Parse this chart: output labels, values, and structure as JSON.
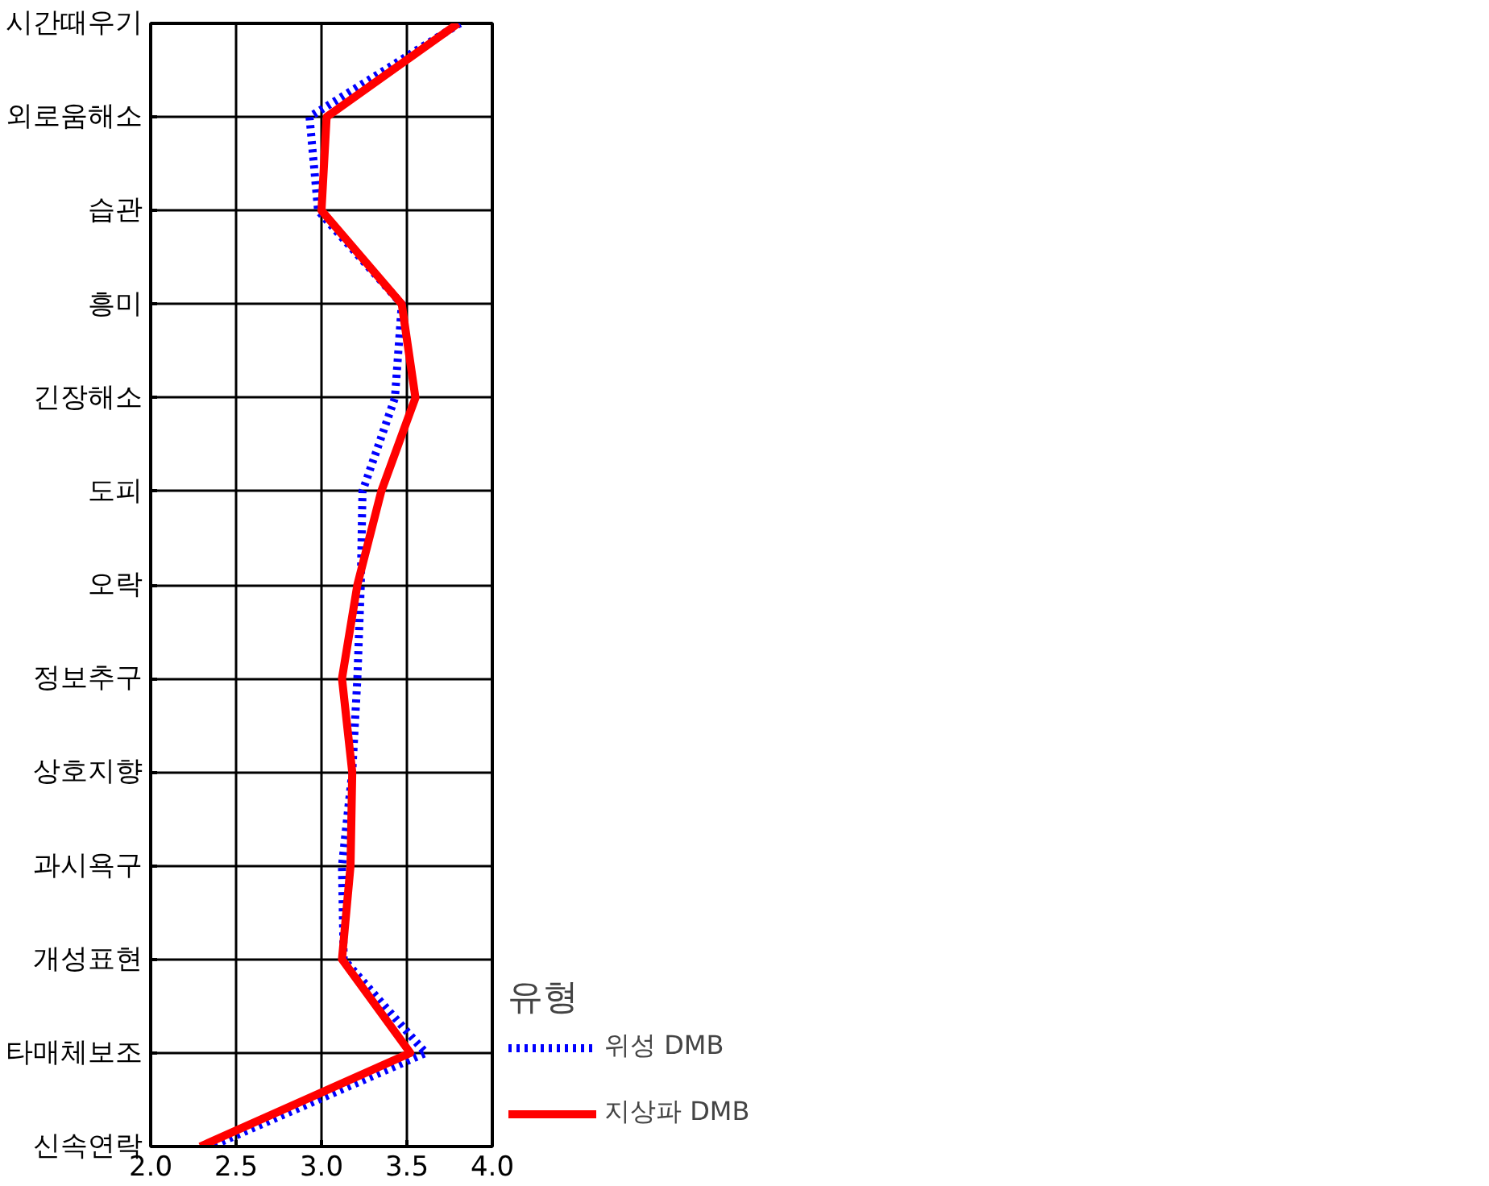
{
  "chart_data": {
    "type": "line",
    "orientation": "horizontal",
    "categories": [
      "시간때우기",
      "외로움해소",
      "습관",
      "흥미",
      "긴장해소",
      "도피",
      "오락",
      "정보추구",
      "상호지향",
      "과시욕구",
      "개성표현",
      "타매체보조",
      "신속연락"
    ],
    "series": [
      {
        "name": "위성 DMB",
        "color": "#0000ff",
        "line_style": "dotted",
        "values": [
          3.81,
          2.93,
          2.98,
          3.47,
          3.43,
          3.24,
          3.23,
          3.21,
          3.18,
          3.12,
          3.13,
          3.61,
          2.35
        ]
      },
      {
        "name": "지상파 DMB",
        "color": "#ff0000",
        "line_style": "solid",
        "values": [
          3.8,
          3.03,
          3.0,
          3.47,
          3.55,
          3.35,
          3.21,
          3.12,
          3.18,
          3.17,
          3.12,
          3.52,
          2.29
        ]
      }
    ],
    "legend_title": "유형",
    "xlim": [
      2.0,
      4.0
    ],
    "xticks": [
      {
        "value": 2.0,
        "label": "2.0"
      },
      {
        "value": 2.5,
        "label": "2.5"
      },
      {
        "value": 3.0,
        "label": "3.0"
      },
      {
        "value": 3.5,
        "label": "3.5"
      },
      {
        "value": 4.0,
        "label": "4.0"
      }
    ],
    "grid": true,
    "legend": "right"
  }
}
